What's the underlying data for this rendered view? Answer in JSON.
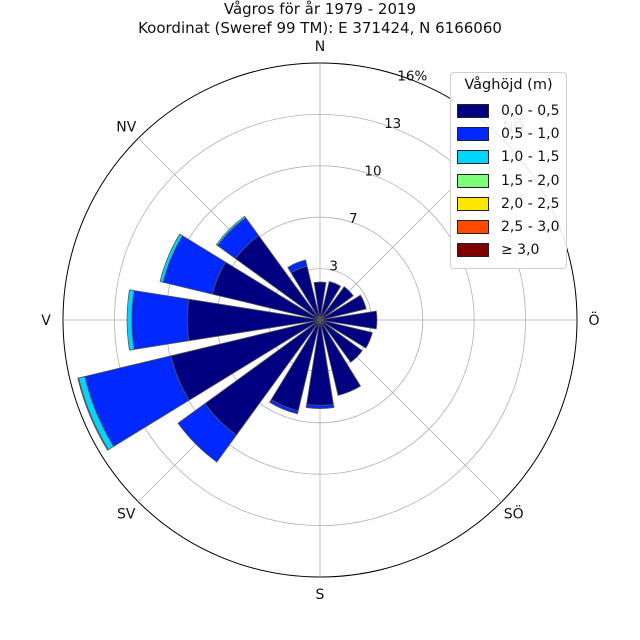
{
  "chart_data": {
    "type": "windrose",
    "title": "Vågros för år 1979 - 2019",
    "subtitle": "Koordinat (Sweref 99 TM): E 371424, N 6166060",
    "directions": [
      "N",
      "NNÖ",
      "NÖ",
      "ÖNÖ",
      "Ö",
      "ÖSÖ",
      "SÖ",
      "SSÖ",
      "S",
      "SSV",
      "SV",
      "VSV",
      "V",
      "VNV",
      "NV",
      "NNV"
    ],
    "direction_angles_deg": [
      0,
      22.5,
      45,
      67.5,
      90,
      112.5,
      135,
      157.5,
      180,
      202.5,
      225,
      247.5,
      270,
      292.5,
      315,
      337.5
    ],
    "compass_labels": [
      {
        "label": "N",
        "angle": 0
      },
      {
        "label": "NÖ",
        "angle": 45
      },
      {
        "label": "Ö",
        "angle": 90
      },
      {
        "label": "SÖ",
        "angle": 135
      },
      {
        "label": "S",
        "angle": 180
      },
      {
        "label": "SV",
        "angle": 225
      },
      {
        "label": "V",
        "angle": 270
      },
      {
        "label": "NV",
        "angle": 315
      }
    ],
    "radial_ticks": [
      {
        "value": 3.25,
        "label": "3"
      },
      {
        "value": 6.5,
        "label": "7"
      },
      {
        "value": 9.75,
        "label": "10"
      },
      {
        "value": 13.0,
        "label": "13"
      },
      {
        "value": 16.25,
        "label": "16%"
      }
    ],
    "rmax": 16.25,
    "legend_title": "Våghöjd (m)",
    "series": [
      {
        "name": "0,0 - 0,5",
        "color": "#000080",
        "values": [
          2.4,
          2.5,
          2.6,
          3.0,
          3.6,
          3.4,
          3.3,
          4.9,
          5.4,
          5.9,
          9.0,
          9.7,
          8.4,
          7.0,
          6.6,
          3.5
        ]
      },
      {
        "name": "0,5 - 1,0",
        "color": "#0028ff",
        "values": [
          0,
          0,
          0,
          0,
          0,
          0,
          0,
          0,
          0.2,
          0.2,
          2.1,
          5.6,
          3.5,
          3.2,
          1.4,
          0.4
        ]
      },
      {
        "name": "1,0 - 1,5",
        "color": "#00d5ff",
        "values": [
          0,
          0,
          0,
          0,
          0,
          0,
          0,
          0,
          0,
          0,
          0,
          0.4,
          0.3,
          0.2,
          0.1,
          0
        ]
      },
      {
        "name": "1,5 - 2,0",
        "color": "#7cff79",
        "values": [
          0,
          0,
          0,
          0,
          0,
          0,
          0,
          0,
          0,
          0,
          0,
          0.05,
          0,
          0,
          0,
          0
        ]
      },
      {
        "name": "2,0 - 2,5",
        "color": "#ffe600",
        "values": [
          0,
          0,
          0,
          0,
          0,
          0,
          0,
          0,
          0,
          0,
          0,
          0,
          0,
          0,
          0,
          0
        ]
      },
      {
        "name": "2,5 - 3,0",
        "color": "#ff4a00",
        "values": [
          0,
          0,
          0,
          0,
          0,
          0,
          0,
          0,
          0,
          0,
          0,
          0,
          0,
          0,
          0,
          0
        ]
      },
      {
        "name": "≥ 3,0",
        "color": "#800000",
        "values": [
          0,
          0,
          0,
          0,
          0,
          0,
          0,
          0,
          0,
          0,
          0,
          0,
          0,
          0,
          0,
          0
        ]
      }
    ]
  }
}
